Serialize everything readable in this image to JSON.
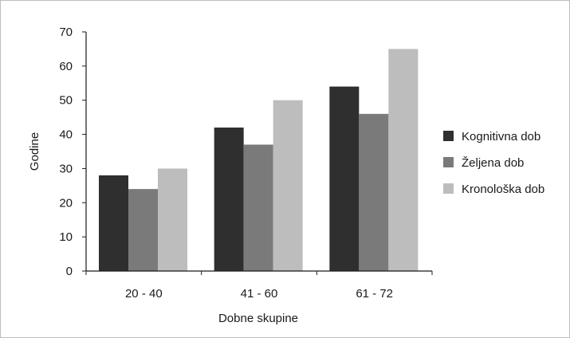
{
  "chart_data": {
    "type": "bar",
    "title": "",
    "xlabel": "Dobne skupine",
    "ylabel": "Godine",
    "categories": [
      "20 - 40",
      "41 - 60",
      "61 - 72"
    ],
    "series": [
      {
        "name": "Kognitivna dob",
        "values": [
          28,
          42,
          54
        ],
        "color": "#2f2f2f"
      },
      {
        "name": "Željena dob",
        "values": [
          24,
          37,
          46
        ],
        "color": "#7a7a7a"
      },
      {
        "name": "Kronološka dob",
        "values": [
          30,
          50,
          65
        ],
        "color": "#bdbdbd"
      }
    ],
    "ylim": [
      0,
      70
    ],
    "yticks": [
      0,
      10,
      20,
      30,
      40,
      50,
      60,
      70
    ],
    "grid": false,
    "legend_position": "right"
  }
}
